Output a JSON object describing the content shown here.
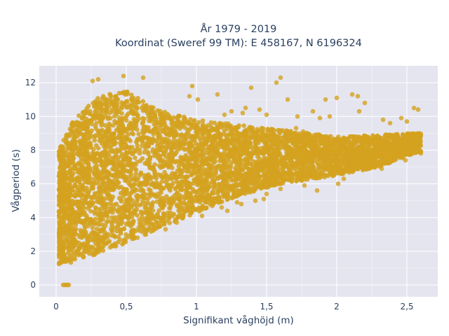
{
  "chart_data": {
    "type": "scatter",
    "title": [
      "År 1979 - 2019",
      "Koordinat (Sweref 99 TM): E 458167, N 6196324"
    ],
    "xlabel": "Signifikant våghöjd (m)",
    "ylabel": "Vågperiod (s)",
    "xlim": [
      -0.12,
      2.72
    ],
    "ylim": [
      -0.7,
      13.0
    ],
    "x_ticks": [
      0,
      0.5,
      1,
      1.5,
      2,
      2.5
    ],
    "x_tick_labels": [
      "0",
      "0,5",
      "1",
      "1,5",
      "2",
      "2,5"
    ],
    "y_ticks": [
      0,
      2,
      4,
      6,
      8,
      10,
      12
    ],
    "y_tick_labels": [
      "0",
      "2",
      "4",
      "6",
      "8",
      "10",
      "12"
    ],
    "grid": true,
    "marker_color": "#d4a21f",
    "plot_background": "#e5e5f0",
    "envelope": {
      "description": "dense point cloud",
      "upper_boundary": [
        [
          0.03,
          8.2
        ],
        [
          0.1,
          9.5
        ],
        [
          0.2,
          10.4
        ],
        [
          0.3,
          11.2
        ],
        [
          0.5,
          11.5
        ],
        [
          0.7,
          10.5
        ],
        [
          1.0,
          9.8
        ],
        [
          1.5,
          9.3
        ],
        [
          2.0,
          8.8
        ],
        [
          2.3,
          8.9
        ],
        [
          2.55,
          9.0
        ]
      ],
      "lower_boundary": [
        [
          0.03,
          1.2
        ],
        [
          0.2,
          1.5
        ],
        [
          0.5,
          2.5
        ],
        [
          0.8,
          3.6
        ],
        [
          1.0,
          4.3
        ],
        [
          1.3,
          5.3
        ],
        [
          1.6,
          6.0
        ],
        [
          2.0,
          6.5
        ],
        [
          2.3,
          7.0
        ],
        [
          2.55,
          7.8
        ]
      ],
      "x_range": [
        0.02,
        2.6
      ]
    },
    "outliers": [
      {
        "x": 0.05,
        "y": 0
      },
      {
        "x": 0.06,
        "y": 0
      },
      {
        "x": 0.07,
        "y": 0
      },
      {
        "x": 0.08,
        "y": 0
      },
      {
        "x": 0.09,
        "y": 0
      },
      {
        "x": 0.48,
        "y": 12.4
      },
      {
        "x": 0.62,
        "y": 12.3
      },
      {
        "x": 0.26,
        "y": 12.1
      },
      {
        "x": 0.3,
        "y": 12.2
      },
      {
        "x": 1.6,
        "y": 12.3
      },
      {
        "x": 1.57,
        "y": 12.0
      },
      {
        "x": 1.39,
        "y": 11.7
      },
      {
        "x": 1.65,
        "y": 11.0
      },
      {
        "x": 0.97,
        "y": 11.8
      },
      {
        "x": 0.95,
        "y": 11.2
      },
      {
        "x": 1.15,
        "y": 11.3
      },
      {
        "x": 1.01,
        "y": 11.0
      },
      {
        "x": 2.11,
        "y": 11.3
      },
      {
        "x": 2.15,
        "y": 11.2
      },
      {
        "x": 2.0,
        "y": 11.1
      },
      {
        "x": 1.92,
        "y": 11.0
      },
      {
        "x": 2.55,
        "y": 10.5
      },
      {
        "x": 2.58,
        "y": 10.4
      },
      {
        "x": 2.2,
        "y": 10.8
      },
      {
        "x": 2.16,
        "y": 10.3
      },
      {
        "x": 1.83,
        "y": 10.3
      },
      {
        "x": 1.88,
        "y": 9.9
      },
      {
        "x": 1.95,
        "y": 10.0
      },
      {
        "x": 1.72,
        "y": 10.0
      },
      {
        "x": 1.45,
        "y": 10.4
      },
      {
        "x": 1.5,
        "y": 10.1
      },
      {
        "x": 1.35,
        "y": 10.5
      },
      {
        "x": 1.33,
        "y": 10.2
      },
      {
        "x": 1.25,
        "y": 10.3
      },
      {
        "x": 1.2,
        "y": 10.1
      },
      {
        "x": 1.71,
        "y": 9.3
      },
      {
        "x": 1.76,
        "y": 9.1
      },
      {
        "x": 2.33,
        "y": 9.8
      },
      {
        "x": 2.38,
        "y": 9.6
      },
      {
        "x": 2.46,
        "y": 9.9
      },
      {
        "x": 2.5,
        "y": 9.7
      },
      {
        "x": 2.49,
        "y": 7.4
      },
      {
        "x": 2.3,
        "y": 7.2
      },
      {
        "x": 2.32,
        "y": 6.9
      },
      {
        "x": 2.05,
        "y": 6.3
      },
      {
        "x": 2.01,
        "y": 6.0
      },
      {
        "x": 1.86,
        "y": 5.6
      },
      {
        "x": 1.77,
        "y": 5.9
      },
      {
        "x": 1.6,
        "y": 5.7
      },
      {
        "x": 1.48,
        "y": 5.1
      },
      {
        "x": 1.5,
        "y": 5.4
      },
      {
        "x": 1.42,
        "y": 5.0
      },
      {
        "x": 1.32,
        "y": 4.8
      },
      {
        "x": 1.29,
        "y": 4.9
      },
      {
        "x": 1.22,
        "y": 4.4
      },
      {
        "x": 1.18,
        "y": 4.6
      },
      {
        "x": 1.04,
        "y": 4.1
      },
      {
        "x": 0.86,
        "y": 3.7
      },
      {
        "x": 0.78,
        "y": 3.3
      },
      {
        "x": 0.7,
        "y": 3.4
      },
      {
        "x": 0.64,
        "y": 3.0
      },
      {
        "x": 0.58,
        "y": 2.8
      },
      {
        "x": 0.48,
        "y": 2.5
      },
      {
        "x": 0.4,
        "y": 2.3
      }
    ]
  }
}
